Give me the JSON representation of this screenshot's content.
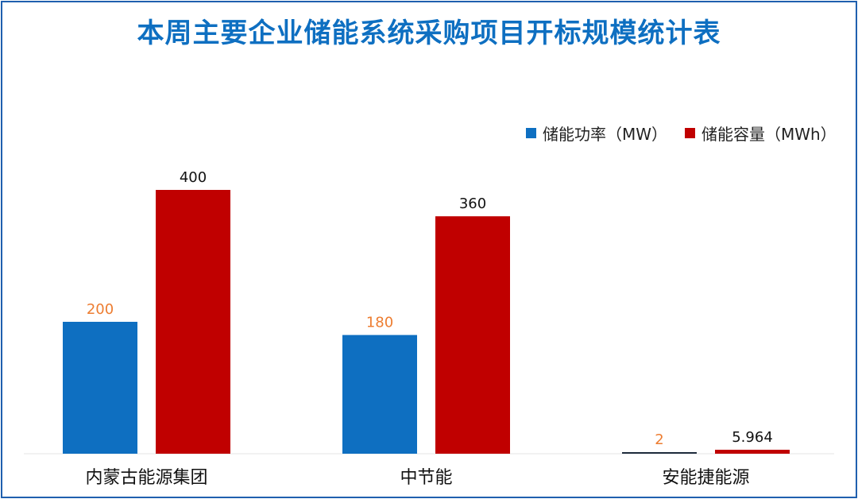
{
  "chart_data": {
    "type": "bar",
    "title": "本周主要企业储能系统采购项目开标规模统计表",
    "categories": [
      "内蒙古能源集团",
      "中节能",
      "安能捷能源"
    ],
    "series": [
      {
        "name": "储能功率（MW）",
        "values": [
          200,
          180,
          2
        ],
        "labels": [
          "200",
          "180",
          "2"
        ],
        "color": "#0e6fc1",
        "label_color": "#ed7d31"
      },
      {
        "name": "储能容量（MWh）",
        "values": [
          400,
          360,
          5.964
        ],
        "labels": [
          "400",
          "360",
          "5.964"
        ],
        "color": "#c00000",
        "label_color": "#111111"
      }
    ],
    "ylim": [
      0,
      400
    ],
    "grid": false,
    "legend": "top-right"
  }
}
